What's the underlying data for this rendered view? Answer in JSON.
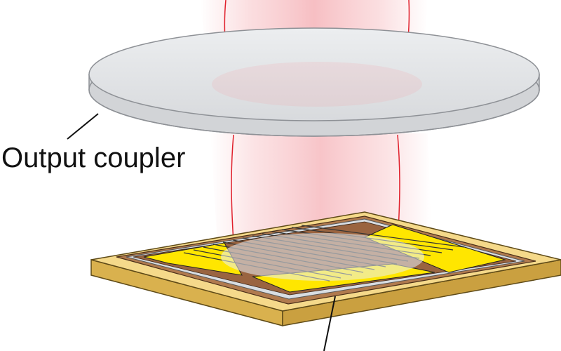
{
  "labels": {
    "output_coupler": "Output coupler"
  },
  "colors": {
    "beam": "#f4a0a6",
    "beam_edge": "#e0202c",
    "coupler_face": "#e2e3e5",
    "coupler_edge": "#c9cbce",
    "substrate_top": "#f5d98a",
    "substrate_side": "#d9b14e",
    "chip": "#b07a4e",
    "electrode": "#ffe600",
    "emitter": "#c9d2dc"
  }
}
